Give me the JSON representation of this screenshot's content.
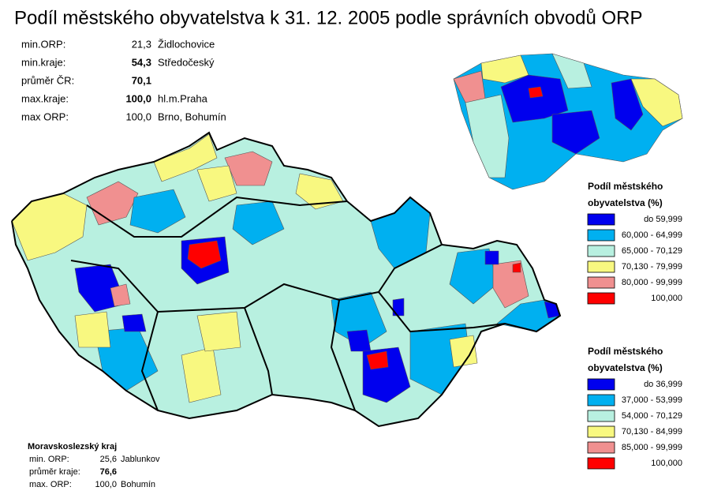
{
  "title": "Podíl městského obyvatelstva k 31. 12. 2005 podle správních obvodů ORP",
  "stats": [
    {
      "label": "min.ORP:",
      "value": "21,3",
      "place": "Židlochovice"
    },
    {
      "label": "min.kraje:",
      "value": "54,3",
      "place": "Středočeský"
    },
    {
      "label": "průměr ČR:",
      "value": "70,1"
    },
    {
      "label": "max.kraje:",
      "value": "100,0",
      "place": "hl.m.Praha"
    },
    {
      "label": "max ORP:",
      "value": "100,0",
      "place": "Brno, Bohumín"
    }
  ],
  "legend_kraje": {
    "title": [
      "Podíl městského",
      "obyvatelstva (%)"
    ],
    "items": [
      {
        "color": "#0000ee",
        "label": "do 59,999"
      },
      {
        "color": "#00b0f0",
        "label": "60,000 - 64,999"
      },
      {
        "color": "#b8f0e0",
        "label": "65,000 - 70,129"
      },
      {
        "color": "#f8f880",
        "label": "70,130 - 79,999"
      },
      {
        "color": "#f09090",
        "label": "80,000 - 99,999"
      },
      {
        "color": "#ff0000",
        "label": "100,000"
      }
    ]
  },
  "legend_orp": {
    "title": [
      "Podíl městského",
      "obyvatelstva (%)"
    ],
    "items": [
      {
        "color": "#0000ee",
        "label": "do 36,999"
      },
      {
        "color": "#00b0f0",
        "label": "37,000 - 53,999"
      },
      {
        "color": "#b8f0e0",
        "label": "54,000 - 70,129"
      },
      {
        "color": "#f8f880",
        "label": "70,130 - 84,999"
      },
      {
        "color": "#f09090",
        "label": "85,000 - 99,999"
      },
      {
        "color": "#ff0000",
        "label": "100,000"
      }
    ]
  },
  "moravskoslezsky": {
    "title": "Moravskoslezský kraj",
    "rows": [
      {
        "label": "min. ORP:",
        "value": "25,6",
        "place": "Jablunkov"
      },
      {
        "label": "průměr kraje:",
        "value": "76,6"
      },
      {
        "label": "max. ORP:",
        "value": "100,0",
        "place": "Bohumín"
      }
    ]
  }
}
